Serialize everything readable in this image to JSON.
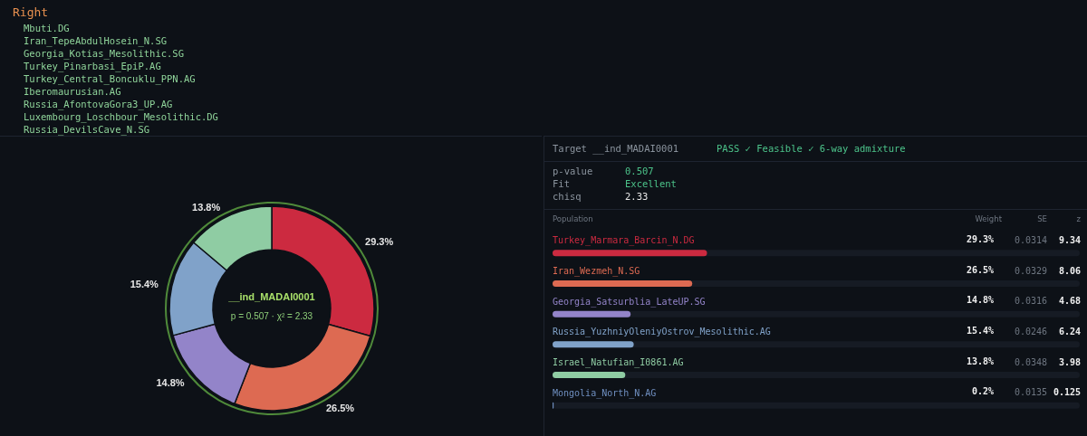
{
  "chart_data": [
    {
      "type": "other",
      "title": "Right",
      "annotations": [
        "Mbuti.DG",
        "Iran_TepeAbdulHosein_N.SG",
        "Georgia_Kotias_Mesolithic.SG",
        "Turkey_Pinarbasi_EpiP.AG",
        "Turkey_Central_Boncuklu_PPN.AG",
        "Iberomaurusian.AG",
        "Russia_AfontovaGora3_UP.AG",
        "Luxembourg_Loschbour_Mesolithic.DG",
        "Russia_DevilsCave_N.SG"
      ]
    },
    {
      "type": "donut",
      "categories": [
        null,
        null,
        null,
        null,
        null
      ],
      "values": [
        29.3,
        26.5,
        14.8,
        15.4,
        13.8
      ],
      "colors": [
        "#cc2a40",
        "#dd6a52",
        "#9384c9",
        "#80a2c9",
        "#8fcca3"
      ],
      "value_labels": [
        "29.3%",
        "26.5%",
        "14.8%",
        "15.4%",
        "13.8%"
      ],
      "annotations": [
        "__ind_MADAI0001",
        "p = 0.507 · χ² = 2.33"
      ]
    },
    {
      "type": "bar",
      "orientation": "horizontal",
      "title": "Target __ind_MADAI0001",
      "subtitle": "PASS ✓ Feasible ✓ 6-way admixture",
      "categories": [
        "Turkey_Marmara_Barcin_N.DG",
        "Iran_Wezmeh_N.SG",
        "Georgia_Satsurblia_LateUP.SG",
        "Russia_YuzhniyOleniyOstrov_Mesolithic.AG",
        "Israel_Natufian_I0861.AG",
        "Mongolia_North_N.AG"
      ],
      "values": [
        29.3,
        26.5,
        14.8,
        15.4,
        13.8,
        0.2
      ],
      "colors": [
        "#cc2a40",
        "#dd6a52",
        "#9384c9",
        "#80a2c9",
        "#8fcca3",
        "#6f8fc0"
      ],
      "value_labels": [
        "29.3%",
        "26.5%",
        "14.8%",
        "15.4%",
        "13.8%",
        "0.2%"
      ],
      "xlim": [
        0,
        100
      ],
      "tick_labels": false,
      "annotations": [
        "p-value",
        "0.507",
        "Fit",
        "Excellent",
        "chisq",
        "2.33",
        "Population",
        "Weight",
        "SE",
        "z",
        "0.0314",
        "9.34",
        "0.0329",
        "8.06",
        "0.0316",
        "4.68",
        "0.0246",
        "6.24",
        "0.0348",
        "3.98",
        "0.0135",
        "0.125"
      ]
    }
  ]
}
